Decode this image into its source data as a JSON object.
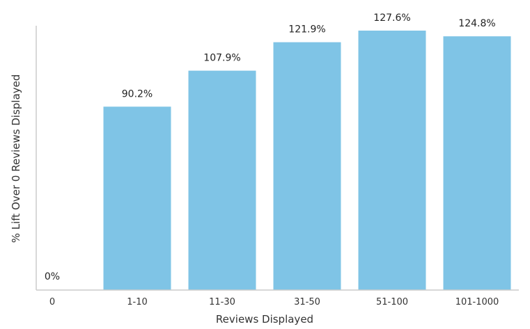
{
  "chart_data": {
    "type": "bar",
    "title": "",
    "xlabel": "Reviews Displayed",
    "ylabel": "% Lift Over 0 Reviews Displayed",
    "categories": [
      "0",
      "1-10",
      "11-30",
      "31-50",
      "51-100",
      "101-1000"
    ],
    "values": [
      0,
      90.2,
      107.9,
      121.9,
      127.6,
      124.8
    ],
    "data_labels": [
      "0%",
      "90.2%",
      "107.9%",
      "121.9%",
      "127.6%",
      "124.8%"
    ],
    "ylim": [
      0,
      130
    ],
    "grid": false,
    "legend": "none",
    "bar_color": "#7fc4e6",
    "axis_color": "#cccccc"
  }
}
